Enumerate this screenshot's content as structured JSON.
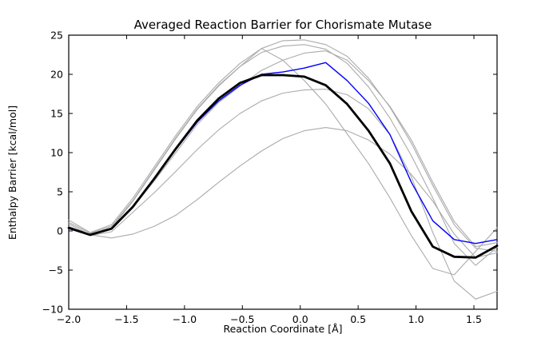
{
  "figure": {
    "background": "#ffffff"
  },
  "chart_data": {
    "type": "line",
    "title": "Averaged Reaction Barrier for Chorismate Mutase",
    "xlabel": "Reaction Coordinate [Å]",
    "ylabel": "Enthalpy Barrier [kcal/mol]",
    "xlim": [
      -2.0,
      1.7
    ],
    "ylim": [
      -10,
      25
    ],
    "grid": false,
    "legend": "none",
    "xticks": [
      -2.0,
      -1.5,
      -1.0,
      -0.5,
      0.0,
      0.5,
      1.0,
      1.5
    ],
    "xtick_labels": [
      "−2.0",
      "−1.5",
      "−1.0",
      "−0.5",
      "0.0",
      "0.5",
      "1.0",
      "1.5"
    ],
    "yticks": [
      -10,
      -5,
      0,
      5,
      10,
      15,
      20,
      25
    ],
    "ytick_labels": [
      "−10",
      "−5",
      "0",
      "5",
      "10",
      "15",
      "20",
      "25"
    ],
    "x": [
      -2.0,
      -1.815,
      -1.63,
      -1.445,
      -1.26,
      -1.075,
      -0.89,
      -0.705,
      -0.52,
      -0.335,
      -0.15,
      0.035,
      0.22,
      0.405,
      0.59,
      0.775,
      0.96,
      1.145,
      1.33,
      1.515,
      1.7
    ],
    "series": [
      {
        "name": "individual-run-1",
        "color": "#ababab",
        "width": 1.1,
        "values": [
          1.4,
          -0.2,
          0.8,
          4.2,
          8.2,
          12.2,
          15.9,
          18.9,
          21.4,
          23.3,
          24.3,
          24.4,
          23.8,
          22.3,
          19.5,
          15.8,
          11.2,
          5.8,
          0.8,
          -2.2,
          -2.6
        ]
      },
      {
        "name": "individual-run-2",
        "color": "#ababab",
        "width": 1.1,
        "values": [
          1.1,
          -0.3,
          0.6,
          3.9,
          7.9,
          11.9,
          15.6,
          18.6,
          21.0,
          22.8,
          23.6,
          23.8,
          23.2,
          21.4,
          18.4,
          14.4,
          9.6,
          4.2,
          -1.6,
          -4.4,
          -2.1
        ]
      },
      {
        "name": "individual-run-3",
        "color": "#ababab",
        "width": 1.1,
        "values": [
          0.9,
          -0.5,
          0.4,
          3.8,
          7.8,
          11.8,
          15.5,
          18.5,
          21.0,
          23.3,
          21.8,
          19.2,
          16.2,
          12.4,
          8.6,
          4.2,
          -0.6,
          -4.8,
          -5.6,
          -2.6,
          0.4
        ]
      },
      {
        "name": "individual-run-4",
        "color": "#ababab",
        "width": 1.1,
        "values": [
          0.6,
          -0.5,
          0.2,
          3.0,
          6.4,
          10.0,
          13.6,
          16.4,
          18.5,
          20.5,
          21.8,
          22.7,
          23.0,
          21.8,
          19.2,
          15.9,
          11.6,
          6.2,
          1.2,
          -2.0,
          -1.5
        ]
      },
      {
        "name": "individual-run-5",
        "color": "#ababab",
        "width": 1.1,
        "values": [
          0.3,
          -0.6,
          -0.1,
          2.4,
          4.9,
          7.6,
          10.4,
          12.9,
          15.0,
          16.6,
          17.6,
          18.0,
          18.1,
          17.4,
          15.6,
          12.3,
          6.9,
          -0.2,
          -6.4,
          -8.7,
          -7.7
        ]
      },
      {
        "name": "individual-run-6",
        "color": "#ababab",
        "width": 1.1,
        "values": [
          0.4,
          -0.5,
          -0.9,
          -0.4,
          0.6,
          2.0,
          4.0,
          6.2,
          8.3,
          10.2,
          11.8,
          12.8,
          13.2,
          12.8,
          11.6,
          9.8,
          7.2,
          3.8,
          -0.4,
          -3.4,
          -2.8
        ]
      },
      {
        "name": "highlighted-run",
        "color": "#0000ff",
        "width": 1.4,
        "values": [
          0.3,
          -0.55,
          0.25,
          3.0,
          6.6,
          10.4,
          13.9,
          16.6,
          18.6,
          20.0,
          20.3,
          20.8,
          21.5,
          19.2,
          16.3,
          12.3,
          6.2,
          1.3,
          -1.1,
          -1.6,
          -1.1
        ]
      },
      {
        "name": "averaged-barrier",
        "color": "#000000",
        "width": 2.8,
        "values": [
          0.4,
          -0.5,
          0.3,
          3.1,
          6.7,
          10.5,
          14.1,
          16.9,
          18.9,
          19.9,
          19.9,
          19.7,
          18.6,
          16.2,
          12.8,
          8.6,
          2.5,
          -2.0,
          -3.3,
          -3.4,
          -1.9
        ]
      }
    ]
  }
}
